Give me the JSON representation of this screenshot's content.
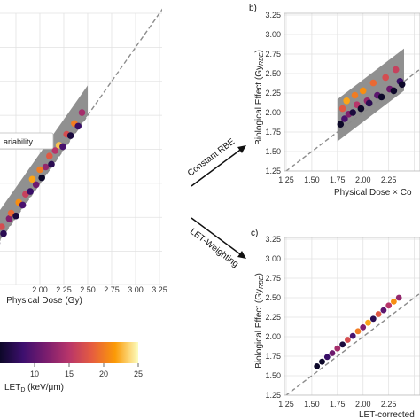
{
  "chart_data": [
    {
      "id": "a",
      "type": "scatter",
      "panel_label": "",
      "xlabel": "Physical Dose (Gy)",
      "ylabel": "",
      "xlim": [
        1.25,
        3.25
      ],
      "ylim": [
        1.25,
        3.25
      ],
      "x_ticks": [
        "2.00",
        "2.25",
        "2.50",
        "2.75",
        "3.00",
        "3.25"
      ],
      "y_ticks": [],
      "legend": [
        "ariability"
      ],
      "band": {
        "x": [
          1.25,
          2.5
        ],
        "lower_offset": 0.0,
        "upper_offset": 0.22
      },
      "identity_line": true,
      "points": [
        {
          "x": 1.3,
          "y": 1.3,
          "let": 3
        },
        {
          "x": 1.36,
          "y": 1.38,
          "let": 6
        },
        {
          "x": 1.4,
          "y": 1.45,
          "let": 11
        },
        {
          "x": 1.45,
          "y": 1.46,
          "let": 4
        },
        {
          "x": 1.5,
          "y": 1.57,
          "let": 14
        },
        {
          "x": 1.55,
          "y": 1.56,
          "let": 5
        },
        {
          "x": 1.6,
          "y": 1.68,
          "let": 17
        },
        {
          "x": 1.62,
          "y": 1.63,
          "let": 7
        },
        {
          "x": 1.68,
          "y": 1.74,
          "let": 12
        },
        {
          "x": 1.7,
          "y": 1.78,
          "let": 19
        },
        {
          "x": 1.75,
          "y": 1.76,
          "let": 6
        },
        {
          "x": 1.78,
          "y": 1.86,
          "let": 21
        },
        {
          "x": 1.82,
          "y": 1.84,
          "let": 9
        },
        {
          "x": 1.85,
          "y": 1.92,
          "let": 16
        },
        {
          "x": 1.9,
          "y": 1.94,
          "let": 8
        },
        {
          "x": 1.92,
          "y": 2.03,
          "let": 22
        },
        {
          "x": 1.96,
          "y": 1.99,
          "let": 11
        },
        {
          "x": 2.0,
          "y": 2.1,
          "let": 20
        },
        {
          "x": 2.02,
          "y": 2.04,
          "let": 5
        },
        {
          "x": 2.06,
          "y": 2.12,
          "let": 13
        },
        {
          "x": 2.1,
          "y": 2.2,
          "let": 18
        },
        {
          "x": 2.12,
          "y": 2.14,
          "let": 7
        },
        {
          "x": 2.16,
          "y": 2.24,
          "let": 15
        },
        {
          "x": 2.2,
          "y": 2.28,
          "let": 23
        },
        {
          "x": 2.24,
          "y": 2.27,
          "let": 9
        },
        {
          "x": 2.28,
          "y": 2.36,
          "let": 17
        },
        {
          "x": 2.32,
          "y": 2.35,
          "let": 6
        },
        {
          "x": 2.36,
          "y": 2.44,
          "let": 20
        },
        {
          "x": 2.4,
          "y": 2.42,
          "let": 8
        },
        {
          "x": 2.44,
          "y": 2.52,
          "let": 14
        }
      ]
    },
    {
      "id": "b",
      "type": "scatter",
      "panel_label": "b)",
      "xlabel": "Physical Dose × Co",
      "ylabel": "Biological Effect (Gy",
      "ylabel_sub": "RBE",
      "ylabel_end": ")",
      "xlim": [
        1.25,
        2.4
      ],
      "ylim": [
        1.25,
        3.25
      ],
      "x_ticks": [
        "1.25",
        "1.50",
        "1.75",
        "2.00",
        "2.25"
      ],
      "y_ticks": [
        "1.25",
        "1.50",
        "1.75",
        "2.00",
        "2.25",
        "2.50",
        "2.75",
        "3.00",
        "3.25"
      ],
      "band": {
        "x": [
          1.75,
          2.4
        ],
        "lower_offset": -0.12,
        "upper_offset": 0.42
      },
      "identity_line": true,
      "points": [
        {
          "x": 1.78,
          "y": 1.85,
          "let": 4
        },
        {
          "x": 1.8,
          "y": 2.05,
          "let": 18
        },
        {
          "x": 1.82,
          "y": 1.92,
          "let": 9
        },
        {
          "x": 1.84,
          "y": 2.15,
          "let": 22
        },
        {
          "x": 1.86,
          "y": 1.98,
          "let": 12
        },
        {
          "x": 1.9,
          "y": 2.0,
          "let": 6
        },
        {
          "x": 1.92,
          "y": 2.22,
          "let": 20
        },
        {
          "x": 1.94,
          "y": 2.1,
          "let": 15
        },
        {
          "x": 1.98,
          "y": 2.05,
          "let": 5
        },
        {
          "x": 2.0,
          "y": 2.28,
          "let": 21
        },
        {
          "x": 2.04,
          "y": 2.15,
          "let": 13
        },
        {
          "x": 2.06,
          "y": 2.12,
          "let": 7
        },
        {
          "x": 2.1,
          "y": 2.38,
          "let": 19
        },
        {
          "x": 2.14,
          "y": 2.22,
          "let": 10
        },
        {
          "x": 2.18,
          "y": 2.2,
          "let": 4
        },
        {
          "x": 2.22,
          "y": 2.45,
          "let": 17
        },
        {
          "x": 2.26,
          "y": 2.3,
          "let": 11
        },
        {
          "x": 2.3,
          "y": 2.28,
          "let": 5
        },
        {
          "x": 2.32,
          "y": 2.55,
          "let": 16
        },
        {
          "x": 2.36,
          "y": 2.4,
          "let": 8
        },
        {
          "x": 2.38,
          "y": 2.36,
          "let": 3
        }
      ]
    },
    {
      "id": "c",
      "type": "scatter",
      "panel_label": "c)",
      "xlabel": "LET-corrected",
      "ylabel": "Biological Effect (Gy",
      "ylabel_sub": "RBE",
      "ylabel_end": ")",
      "xlim": [
        1.25,
        2.4
      ],
      "ylim": [
        1.25,
        3.25
      ],
      "x_ticks": [
        "1.25",
        "1.50",
        "1.75",
        "2.00",
        "2.25"
      ],
      "y_ticks": [
        "1.25",
        "1.50",
        "1.75",
        "2.00",
        "2.25",
        "2.50",
        "2.75",
        "3.00",
        "3.25"
      ],
      "band": null,
      "identity_line": true,
      "points": [
        {
          "x": 1.55,
          "y": 1.62,
          "let": 3
        },
        {
          "x": 1.6,
          "y": 1.68,
          "let": 5
        },
        {
          "x": 1.65,
          "y": 1.74,
          "let": 8
        },
        {
          "x": 1.7,
          "y": 1.79,
          "let": 11
        },
        {
          "x": 1.75,
          "y": 1.85,
          "let": 14
        },
        {
          "x": 1.8,
          "y": 1.9,
          "let": 6
        },
        {
          "x": 1.85,
          "y": 1.96,
          "let": 17
        },
        {
          "x": 1.9,
          "y": 2.01,
          "let": 9
        },
        {
          "x": 1.95,
          "y": 2.07,
          "let": 20
        },
        {
          "x": 2.0,
          "y": 2.12,
          "let": 12
        },
        {
          "x": 2.05,
          "y": 2.18,
          "let": 22
        },
        {
          "x": 2.1,
          "y": 2.23,
          "let": 7
        },
        {
          "x": 2.15,
          "y": 2.29,
          "let": 18
        },
        {
          "x": 2.2,
          "y": 2.34,
          "let": 10
        },
        {
          "x": 2.25,
          "y": 2.4,
          "let": 15
        },
        {
          "x": 2.3,
          "y": 2.45,
          "let": 21
        },
        {
          "x": 2.35,
          "y": 2.5,
          "let": 13
        }
      ]
    }
  ],
  "colorbar": {
    "label": "LET",
    "label_sub": "D",
    "label_unit": " (keV/μm)",
    "range": [
      5,
      25
    ],
    "ticks": [
      "10",
      "15",
      "20",
      "25"
    ]
  },
  "arrows": {
    "top_label": "Constant RBE",
    "bottom_label": "LET-Weighting"
  },
  "colors": {
    "band": "#8a8a8a",
    "identity_line": "#8c8c8c",
    "grid": "#e2e2e2",
    "colormap": [
      "#0d0829",
      "#3d0f6e",
      "#7a1d6e",
      "#b8356a",
      "#e65d3f",
      "#fb9a06",
      "#fcfdbf"
    ]
  }
}
